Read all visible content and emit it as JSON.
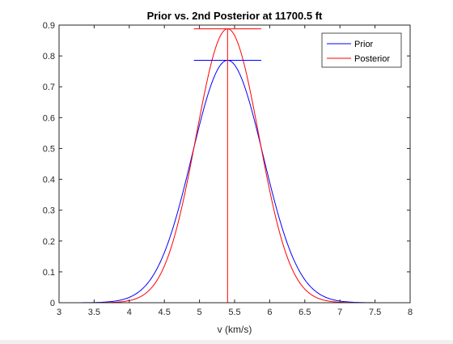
{
  "chart_data": {
    "type": "line",
    "title": "Prior vs. 2nd Posterior at 11700.5 ft",
    "xlabel": "v (km/s)",
    "ylabel": "",
    "xlim": [
      3,
      8
    ],
    "ylim": [
      0,
      0.9
    ],
    "xticks": [
      "3",
      "3.5",
      "4",
      "4.5",
      "5",
      "5.5",
      "6",
      "6.5",
      "7",
      "7.5",
      "8"
    ],
    "yticks": [
      "0",
      "0.1",
      "0.2",
      "0.3",
      "0.4",
      "0.5",
      "0.6",
      "0.7",
      "0.8",
      "0.9"
    ],
    "grid": false,
    "legend": {
      "location": "top-right"
    },
    "series": [
      {
        "name": "Prior",
        "color": "#0000ff",
        "distribution": "normal",
        "mean": 5.4,
        "std": 0.507,
        "peak": 0.786,
        "peak_marker": {
          "x_range": [
            4.92,
            5.88
          ],
          "y": 0.786
        }
      },
      {
        "name": "Posterior",
        "color": "#ff0000",
        "distribution": "normal",
        "mean": 5.4,
        "std": 0.449,
        "peak": 0.888,
        "peak_marker": {
          "x_range": [
            4.92,
            5.88
          ],
          "y": 0.888
        },
        "mean_line": {
          "x": 5.4,
          "y_range": [
            0,
            0.888
          ]
        }
      }
    ]
  }
}
